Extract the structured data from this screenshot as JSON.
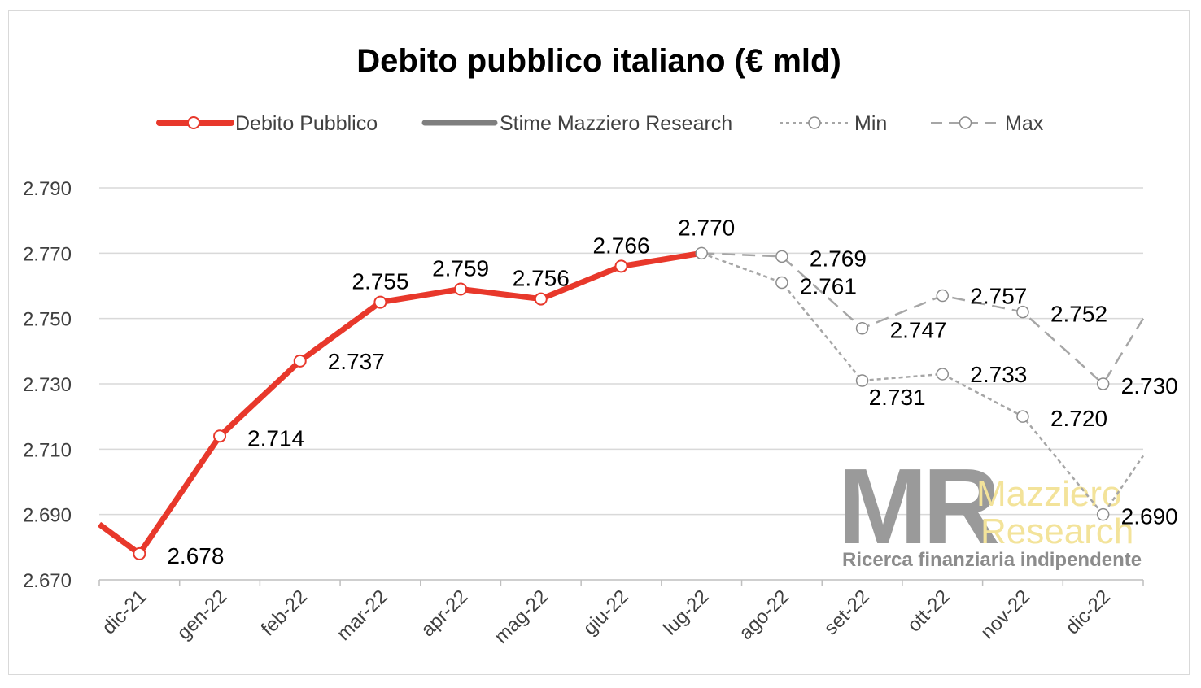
{
  "chart_data": {
    "type": "line",
    "title": "Debito pubblico italiano (€ mld)",
    "categories": [
      "dic-21",
      "gen-22",
      "feb-22",
      "mar-22",
      "apr-22",
      "mag-22",
      "giu-22",
      "lug-22",
      "ago-22",
      "set-22",
      "ott-22",
      "nov-22",
      "dic-22"
    ],
    "ylim": [
      2670,
      2790
    ],
    "yticks": [
      "2.670",
      "2.690",
      "2.710",
      "2.730",
      "2.750",
      "2.770",
      "2.790"
    ],
    "ytick_values": [
      2670,
      2690,
      2710,
      2730,
      2750,
      2770,
      2790
    ],
    "grid": true,
    "legend_position": "top",
    "series": [
      {
        "name": "Debito Pubblico",
        "color": "#e8382b",
        "style": "solid",
        "values": [
          2678,
          2714,
          2737,
          2755,
          2759,
          2756,
          2766,
          2770,
          null,
          null,
          null,
          null,
          null
        ],
        "labels": [
          "2.678",
          "2.714",
          "2.737",
          "2.755",
          "2.759",
          "2.756",
          "2.766",
          "2.770",
          "",
          "",
          "",
          "",
          ""
        ]
      },
      {
        "name": "Stime Mazziero Research",
        "color": "#7f7f7f",
        "style": "solid",
        "values": [
          null,
          null,
          null,
          null,
          null,
          null,
          null,
          null,
          null,
          null,
          null,
          null,
          null
        ],
        "labels": []
      },
      {
        "name": "Min",
        "color": "#a6a6a6",
        "style": "dotted",
        "values": [
          null,
          null,
          null,
          null,
          null,
          null,
          null,
          2770,
          2761,
          2731,
          2733,
          2720,
          2690
        ],
        "labels": [
          "",
          "",
          "",
          "",
          "",
          "",
          "",
          "",
          "2.761",
          "2.731",
          "2.733",
          "2.720",
          "2.690"
        ]
      },
      {
        "name": "Max",
        "color": "#a6a6a6",
        "style": "dashed",
        "values": [
          null,
          null,
          null,
          null,
          null,
          null,
          null,
          2770,
          2769,
          2747,
          2757,
          2752,
          2730
        ],
        "labels": [
          "",
          "",
          "",
          "",
          "",
          "",
          "",
          "",
          "2.769",
          "2.747",
          "2.757",
          "2.752",
          "2.730"
        ]
      }
    ]
  },
  "logo": {
    "initials": "MR",
    "name_line1": "Mazziero",
    "name_line2": "Research",
    "tagline": "Ricerca finanziaria indipendente",
    "colors": {
      "initials": "#9a9a9a",
      "name": "#f3e39a",
      "tagline": "#8c8c8c"
    }
  }
}
